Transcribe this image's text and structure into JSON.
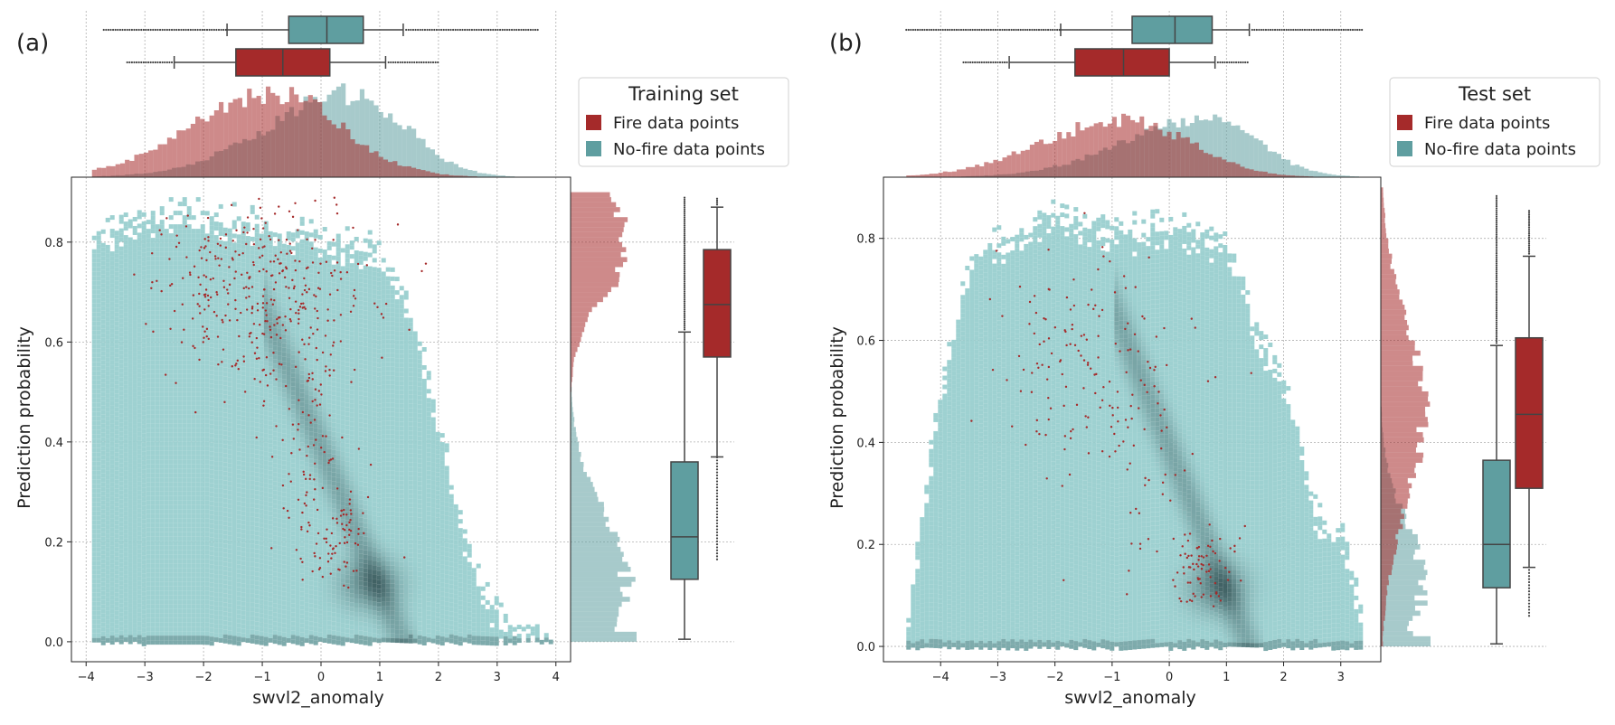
{
  "figure": {
    "colors": {
      "fire": "#a52a2a",
      "nofire": "#5f9ea0",
      "nofire_hist": "#8fbcbc",
      "fire_hist": "#c97a7a",
      "grid": "#b0b0b0",
      "density_light": "#9fd6d6",
      "density_dark": "#2e4f52"
    }
  },
  "chart_data": [
    {
      "type": "scatter",
      "panel_label": "(a)",
      "description_kind": "joint density + scatter",
      "xlabel": "swvl2_anomaly",
      "ylabel": "Prediction probability",
      "xlim": [
        -4.25,
        4.25
      ],
      "ylim": [
        -0.04,
        0.93
      ],
      "xticks": [
        -4,
        -3,
        -2,
        -1,
        0,
        1,
        2,
        3,
        4
      ],
      "xtick_labels": [
        "−4",
        "−3",
        "−2",
        "−1",
        "0",
        "1",
        "2",
        "3",
        "4"
      ],
      "yticks": [
        0.0,
        0.2,
        0.4,
        0.6,
        0.8
      ],
      "ytick_labels": [
        "0.0",
        "0.2",
        "0.4",
        "0.6",
        "0.8"
      ],
      "legend": {
        "title": "Training set",
        "entries": [
          "Fire data points",
          "No-fire data points"
        ]
      },
      "series": [
        {
          "name": "No-fire data points",
          "x_box": {
            "whislo": -1.6,
            "q1": -0.55,
            "med": 0.1,
            "q3": 0.72,
            "whishi": 1.4,
            "fliers_range": [
              -3.7,
              3.7
            ]
          },
          "y_box": {
            "whislo": 0.005,
            "q1": 0.125,
            "med": 0.21,
            "q3": 0.36,
            "whishi": 0.62,
            "fliers_range": [
              0.62,
              0.89
            ]
          },
          "x_hist_peak": 0.5,
          "y_hist_peak": 0.13
        },
        {
          "name": "Fire data points",
          "x_box": {
            "whislo": -2.5,
            "q1": -1.45,
            "med": -0.65,
            "q3": 0.15,
            "whishi": 1.1,
            "fliers_range": [
              -3.3,
              2.0
            ]
          },
          "y_box": {
            "whislo": 0.37,
            "q1": 0.57,
            "med": 0.675,
            "q3": 0.785,
            "whishi": 0.87,
            "fliers_range": [
              0.165,
              0.89
            ]
          },
          "x_hist_peak": -0.8,
          "y_hist_peak": 0.79
        }
      ]
    },
    {
      "type": "scatter",
      "panel_label": "(b)",
      "description_kind": "joint density + scatter",
      "xlabel": "swvl2_anomaly",
      "ylabel": "Prediction probability",
      "xlim": [
        -5.0,
        3.7
      ],
      "ylim": [
        -0.03,
        0.92
      ],
      "xticks": [
        -4,
        -3,
        -2,
        -1,
        0,
        1,
        2,
        3
      ],
      "xtick_labels": [
        "−4",
        "−3",
        "−2",
        "−1",
        "0",
        "1",
        "2",
        "3"
      ],
      "yticks": [
        0.0,
        0.2,
        0.4,
        0.6,
        0.8
      ],
      "ytick_labels": [
        "0.0",
        "0.2",
        "0.4",
        "0.6",
        "0.8"
      ],
      "legend": {
        "title": "Test set",
        "entries": [
          "Fire data points",
          "No-fire data points"
        ]
      },
      "series": [
        {
          "name": "No-fire data points",
          "x_box": {
            "whislo": -1.9,
            "q1": -0.65,
            "med": 0.1,
            "q3": 0.75,
            "whishi": 1.4,
            "fliers_range": [
              -4.6,
              3.4
            ]
          },
          "y_box": {
            "whislo": 0.005,
            "q1": 0.115,
            "med": 0.2,
            "q3": 0.365,
            "whishi": 0.59,
            "fliers_range": [
              0.59,
              0.885
            ]
          },
          "x_hist_peak": 0.6,
          "y_hist_peak": 0.12
        },
        {
          "name": "Fire data points",
          "x_box": {
            "whislo": -2.8,
            "q1": -1.65,
            "med": -0.8,
            "q3": 0.0,
            "whishi": 0.8,
            "fliers_range": [
              -3.6,
              1.4
            ]
          },
          "y_box": {
            "whislo": 0.155,
            "q1": 0.31,
            "med": 0.455,
            "q3": 0.605,
            "whishi": 0.765,
            "fliers_range": [
              0.06,
              0.855
            ]
          },
          "x_hist_peak": -0.8,
          "y_hist_peak": 0.45
        }
      ]
    }
  ]
}
